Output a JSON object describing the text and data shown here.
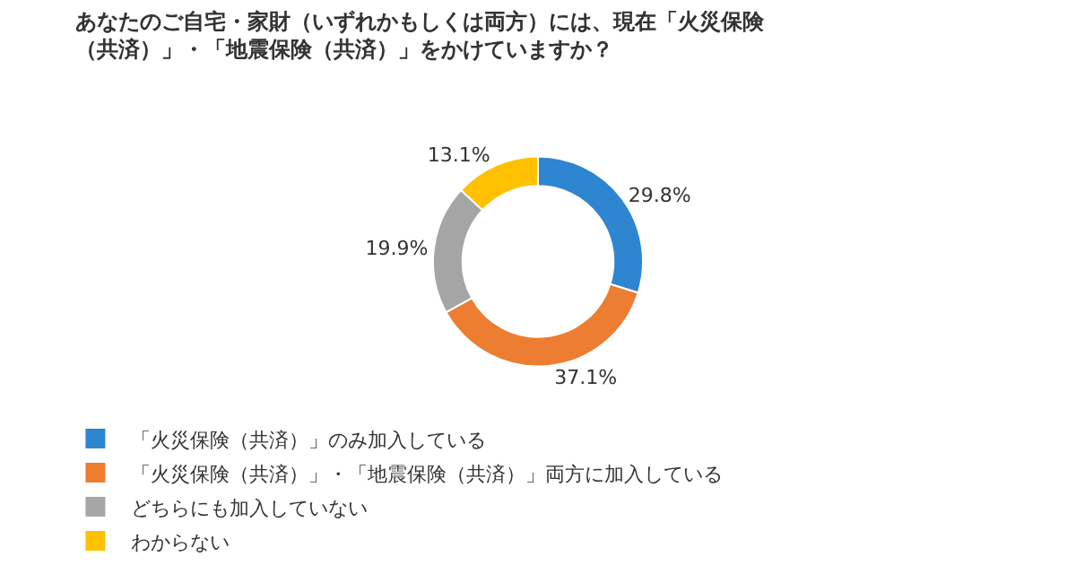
{
  "chart_data": {
    "type": "donut",
    "title": "あなたのご自宅・家財（いずれかもしくは両方）には、現在「火災保険（共済）」・「地震保険（共済）」をかけていますか？",
    "categories": [
      "「火災保険（共済）」のみ加入している",
      "「火災保険（共済）」・「地震保険（共済）」両方に加入している",
      "どちらにも加入していない",
      "わからない"
    ],
    "values": [
      29.8,
      37.1,
      19.9,
      13.1
    ],
    "colors": [
      "#2e86d1",
      "#ed7d31",
      "#a5a5a5",
      "#ffc000"
    ],
    "value_labels": [
      "29.8%",
      "37.1%",
      "19.9%",
      "13.1%"
    ],
    "legend": "bottom left"
  }
}
